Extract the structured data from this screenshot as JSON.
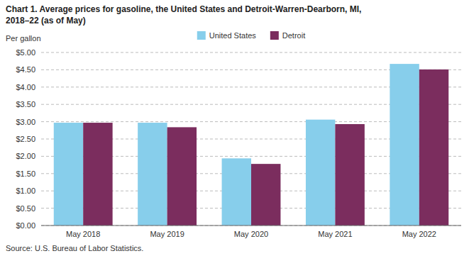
{
  "chart_data": {
    "type": "bar",
    "title": "Chart 1. Average prices for gasoline, the United States and Detroit-Warren-Dearborn, MI,",
    "subtitle": "2018–22 (as of May)",
    "y_label": "Per gallon",
    "source": "Source: U.S. Bureau of Labor Statistics.",
    "categories": [
      "May 2018",
      "May 2019",
      "May 2020",
      "May 2021",
      "May 2022"
    ],
    "series": [
      {
        "name": "United States",
        "color": "#87CEEB",
        "values": [
          2.97,
          2.97,
          1.94,
          3.06,
          4.67
        ]
      },
      {
        "name": "Detroit",
        "color": "#7B2D5E",
        "values": [
          2.97,
          2.84,
          1.78,
          2.93,
          4.51
        ]
      }
    ],
    "ylim": [
      0,
      5.0
    ],
    "yticks": [
      {
        "value": 0.0,
        "label": "$0.00"
      },
      {
        "value": 0.5,
        "label": "$0.50"
      },
      {
        "value": 1.0,
        "label": "$1.00"
      },
      {
        "value": 1.5,
        "label": "$1.50"
      },
      {
        "value": 2.0,
        "label": "$2.00"
      },
      {
        "value": 2.5,
        "label": "$2.50"
      },
      {
        "value": 3.0,
        "label": "$3.00"
      },
      {
        "value": 3.5,
        "label": "$3.50"
      },
      {
        "value": 4.0,
        "label": "$4.00"
      },
      {
        "value": 4.5,
        "label": "$4.50"
      },
      {
        "value": 5.0,
        "label": "$5.00"
      }
    ],
    "grid": true,
    "legend": "top"
  }
}
